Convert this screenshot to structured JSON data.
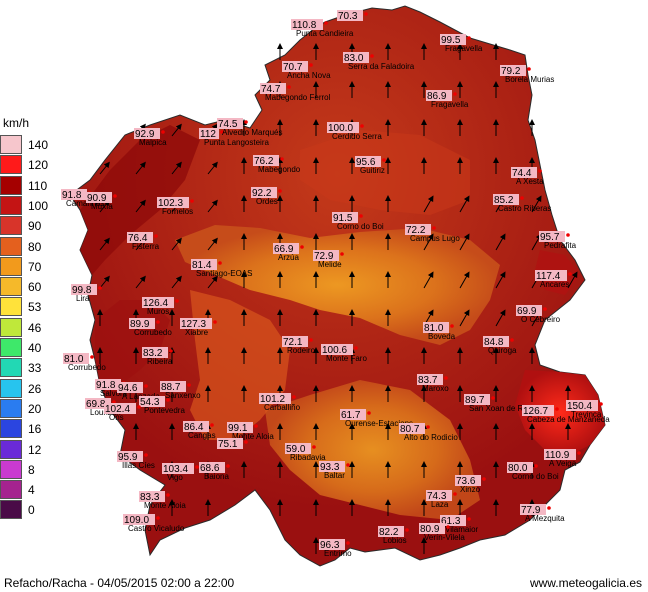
{
  "units": "km/h",
  "legend": [
    {
      "label": "140",
      "color": "#f6c6cc"
    },
    {
      "label": "120",
      "color": "#ff1a1a"
    },
    {
      "label": "110",
      "color": "#a50000"
    },
    {
      "label": "100",
      "color": "#c41414"
    },
    {
      "label": "90",
      "color": "#d8342a"
    },
    {
      "label": "80",
      "color": "#e4601e"
    },
    {
      "label": "70",
      "color": "#f29a1c"
    },
    {
      "label": "60",
      "color": "#f5b92a"
    },
    {
      "label": "53",
      "color": "#ffe23a"
    },
    {
      "label": "46",
      "color": "#bfe83a"
    },
    {
      "label": "40",
      "color": "#3ee86a"
    },
    {
      "label": "33",
      "color": "#22d8b4"
    },
    {
      "label": "26",
      "color": "#27c4ee"
    },
    {
      "label": "20",
      "color": "#2a7cf0"
    },
    {
      "label": "16",
      "color": "#2b45e0"
    },
    {
      "label": "12",
      "color": "#6a2ad8"
    },
    {
      "label": "8",
      "color": "#c93ad0"
    },
    {
      "label": "4",
      "color": "#a5238f"
    },
    {
      "label": "0",
      "color": "#4a0b47"
    }
  ],
  "footer": {
    "left": "Refacho/Racha - 04/05/2015 02:00 a 22:00",
    "right": "www.meteogalicia.es"
  },
  "stations": [
    {
      "value": "110.8",
      "name": "Punta Candieira"
    },
    {
      "value": "70.3",
      "name": ""
    },
    {
      "value": "99.5",
      "name": "Fragavella"
    },
    {
      "value": "83.0",
      "name": "Serra da Faladoira"
    },
    {
      "value": "79.2",
      "name": "Borela Murias"
    },
    {
      "value": "70.7",
      "name": "Ancha Nova"
    },
    {
      "value": "74.7",
      "name": "Mabegondo Ferrol"
    },
    {
      "value": "86.9",
      "name": "Fragavella"
    },
    {
      "value": "92.9",
      "name": "Malpica"
    },
    {
      "value": "112",
      "name": "Punta Langosteira"
    },
    {
      "value": "74.5",
      "name": "Alvedro Marqués"
    },
    {
      "value": "100.0",
      "name": "Cerdido Serra"
    },
    {
      "value": "76.2",
      "name": "Mabegondo"
    },
    {
      "value": "95.6",
      "name": "Guitiriz"
    },
    {
      "value": "74.4",
      "name": "A Xesta"
    },
    {
      "value": "91.8",
      "name": "Camariñas"
    },
    {
      "value": "90.9",
      "name": "Muxía"
    },
    {
      "value": "102.3",
      "name": "Fornelos"
    },
    {
      "value": "92.2",
      "name": "Ordes"
    },
    {
      "value": "85.2",
      "name": "Castro Riberas"
    },
    {
      "value": "91.5",
      "name": "Corno do Boi"
    },
    {
      "value": "72.2",
      "name": "Campus Lugo"
    },
    {
      "value": "95.7",
      "name": "Pedrafita"
    },
    {
      "value": "76.4",
      "name": "Fisterra"
    },
    {
      "value": "66.9",
      "name": "Arzúa"
    },
    {
      "value": "72.9",
      "name": "Melide"
    },
    {
      "value": "81.4",
      "name": "Santiago-EOAS"
    },
    {
      "value": "117.4",
      "name": "Ancares"
    },
    {
      "value": "99.8",
      "name": "Lira"
    },
    {
      "value": "126.4",
      "name": "Muros"
    },
    {
      "value": "69.9",
      "name": "O Cebreiro"
    },
    {
      "value": "89.9",
      "name": "Corrubedo"
    },
    {
      "value": "127.3",
      "name": "Xiabre"
    },
    {
      "value": "81.0",
      "name": "Boveda"
    },
    {
      "value": "72.1",
      "name": "Rodeiro"
    },
    {
      "value": "84.8",
      "name": "Quiroga"
    },
    {
      "value": "83.2",
      "name": "Ribeira"
    },
    {
      "value": "100.6",
      "name": "Monte Faro"
    },
    {
      "value": "81.0",
      "name": "Corrubedo"
    },
    {
      "value": "83.7",
      "name": "Maroxo"
    },
    {
      "value": "91.8",
      "name": "Salvora"
    },
    {
      "value": "94.6",
      "name": "A Lanzada"
    },
    {
      "value": "88.7",
      "name": "Sanxenxo"
    },
    {
      "value": "89.7",
      "name": "San Xoan de Río"
    },
    {
      "value": "126.7",
      "name": "Cabeza de Manzaneda"
    },
    {
      "value": "150.4",
      "name": "Trevinca"
    },
    {
      "value": "69.8",
      "name": "Lourizán"
    },
    {
      "value": "54.3",
      "name": "Pontevedra"
    },
    {
      "value": "101.2",
      "name": "Carballiño"
    },
    {
      "value": "102.4",
      "name": "Ons"
    },
    {
      "value": "61.7",
      "name": "Ourense-Estacions"
    },
    {
      "value": "86.4",
      "name": "Cangas"
    },
    {
      "value": "99.1",
      "name": "Monte Aloia"
    },
    {
      "value": "80.7",
      "name": "Alto do Rodicio"
    },
    {
      "value": "110.9",
      "name": "A Veiga"
    },
    {
      "value": "75.1",
      "name": ""
    },
    {
      "value": "59.0",
      "name": "Ribadavia"
    },
    {
      "value": "95.9",
      "name": "Illas Cíes"
    },
    {
      "value": "93.3",
      "name": "Baltar"
    },
    {
      "value": "73.6",
      "name": "Xinzo"
    },
    {
      "value": "80.0",
      "name": "Corno do Boi"
    },
    {
      "value": "103.4",
      "name": "Vigo"
    },
    {
      "value": "68.6",
      "name": "Baiona"
    },
    {
      "value": "83.3",
      "name": "Monte Aloia"
    },
    {
      "value": "74.3",
      "name": "Laza"
    },
    {
      "value": "77.9",
      "name": "A Mezquita"
    },
    {
      "value": "61.3",
      "name": "Vilamaior"
    },
    {
      "value": "80.9",
      "name": "Verín-Vilela"
    },
    {
      "value": "109.0",
      "name": "Castro Vicaludo"
    },
    {
      "value": "82.2",
      "name": "Lobios"
    },
    {
      "value": "96.3",
      "name": "Entrimo"
    }
  ]
}
